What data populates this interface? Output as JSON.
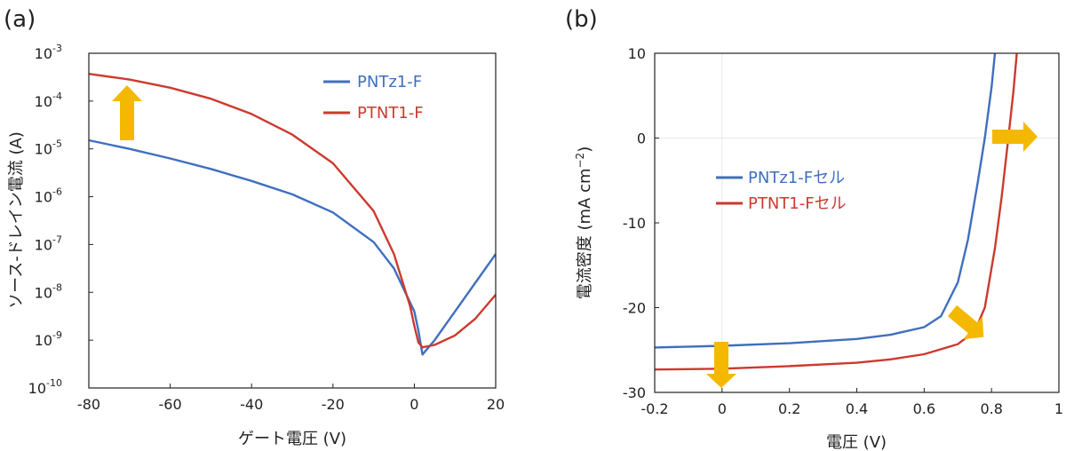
{
  "chart_data": [
    {
      "panel_label": "(a)",
      "type": "line",
      "xlabel": "ゲート電圧 (V)",
      "ylabel": "ソース-ドレイン電流 (A)",
      "xlim": [
        -80,
        20
      ],
      "ylim_log10": [
        -10,
        -3
      ],
      "log_y": true,
      "x_ticks": [
        "-80",
        "-60",
        "-40",
        "-20",
        "0",
        "20"
      ],
      "y_tick_exponents": [
        "-10",
        "-9",
        "-8",
        "-7",
        "-6",
        "-5",
        "-4",
        "-3"
      ],
      "y_tick_base": "10",
      "legend_position": "top-right",
      "series": [
        {
          "name": "PNTz1-F",
          "color": "#3f6fbf",
          "x": [
            -80,
            -70,
            -60,
            -50,
            -40,
            -30,
            -20,
            -10,
            -5,
            0,
            1,
            2,
            5,
            10,
            15,
            20
          ],
          "y_log10": [
            -4.82,
            -5.0,
            -5.2,
            -5.42,
            -5.67,
            -5.95,
            -6.33,
            -6.95,
            -7.5,
            -8.4,
            -8.8,
            -9.3,
            -9.0,
            -8.4,
            -7.8,
            -7.2
          ]
        },
        {
          "name": "PTNT1-F",
          "color": "#cc3a2e",
          "x": [
            -80,
            -70,
            -60,
            -50,
            -40,
            -30,
            -20,
            -10,
            -5,
            -1,
            0,
            1,
            2,
            5,
            10,
            15,
            20
          ],
          "y_log10": [
            -3.43,
            -3.55,
            -3.72,
            -3.95,
            -4.27,
            -4.7,
            -5.3,
            -6.3,
            -7.2,
            -8.3,
            -8.7,
            -9.05,
            -9.15,
            -9.1,
            -8.9,
            -8.55,
            -8.05
          ]
        }
      ],
      "arrows": [
        {
          "direction": "up",
          "color": "#f5b800"
        }
      ]
    },
    {
      "panel_label": "(b)",
      "type": "line",
      "xlabel": "電圧 (V)",
      "ylabel": "電流密度 (mA cm",
      "ylabel_superscript": "−2",
      "ylabel_close": ")",
      "xlim": [
        -0.2,
        1.0
      ],
      "ylim": [
        -30,
        10
      ],
      "x_ticks": [
        "-0.2",
        "0",
        "0.2",
        "0.4",
        "0.6",
        "0.8",
        "1"
      ],
      "y_ticks": [
        "10",
        "0",
        "-10",
        "-20",
        "-30"
      ],
      "grid": true,
      "legend_position": "center-left",
      "series": [
        {
          "name": "PNTz1-Fセル",
          "color": "#3f6fbf",
          "x": [
            -0.2,
            0.0,
            0.2,
            0.4,
            0.5,
            0.6,
            0.65,
            0.7,
            0.73,
            0.76,
            0.78,
            0.8,
            0.81
          ],
          "y": [
            -24.7,
            -24.5,
            -24.2,
            -23.7,
            -23.2,
            -22.3,
            -21.0,
            -17.0,
            -12.0,
            -5.0,
            0.0,
            6.0,
            10.0
          ]
        },
        {
          "name": "PTNT1-Fセル",
          "color": "#cc3a2e",
          "x": [
            -0.2,
            0.0,
            0.2,
            0.4,
            0.5,
            0.6,
            0.7,
            0.75,
            0.78,
            0.81,
            0.83,
            0.85,
            0.865,
            0.875
          ],
          "y": [
            -27.3,
            -27.2,
            -26.9,
            -26.5,
            -26.1,
            -25.5,
            -24.3,
            -22.8,
            -20.0,
            -13.0,
            -7.0,
            0.0,
            5.5,
            10.0
          ]
        }
      ],
      "arrows": [
        {
          "direction": "down",
          "color": "#f5b800"
        },
        {
          "direction": "right",
          "color": "#f5b800"
        },
        {
          "direction": "down-right",
          "color": "#f5b800"
        }
      ]
    }
  ]
}
